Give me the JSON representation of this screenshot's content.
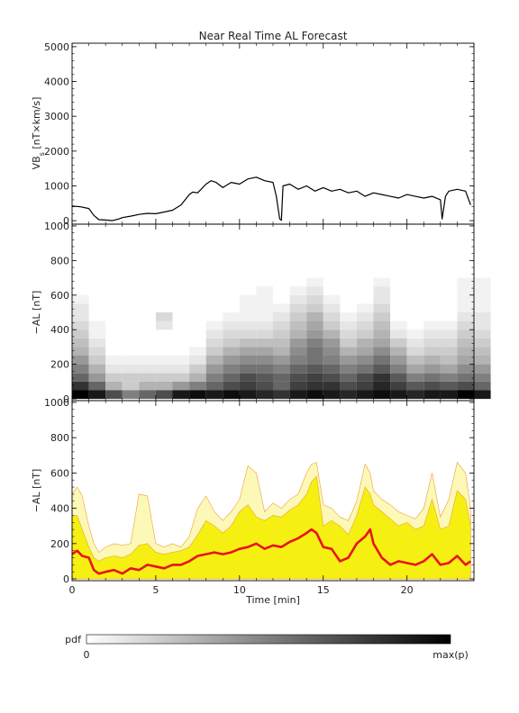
{
  "title": "Near Real Time AL Forecast",
  "colorbar": {
    "label": "pdf",
    "min_label": "0",
    "max_label": "max(p)"
  },
  "chart_data": [
    {
      "type": "line",
      "panel": "top",
      "ylabel_main": "VB",
      "ylabel_sub": "s",
      "ylabel_units": "[nT×km/s]",
      "ylim": [
        -100,
        5100
      ],
      "yticks": [
        0,
        1000,
        2000,
        3000,
        4000,
        5000
      ],
      "xlim": [
        0,
        24
      ],
      "x": [
        0,
        0.5,
        1,
        1.3,
        1.6,
        2,
        2.4,
        2.8,
        3,
        3.5,
        4,
        4.5,
        5,
        5.5,
        6,
        6.5,
        7,
        7.2,
        7.5,
        8,
        8.3,
        8.6,
        9,
        9.5,
        10,
        10.5,
        11,
        11.5,
        12,
        12.2,
        12.4,
        12.5,
        12.6,
        13,
        13.5,
        14,
        14.5,
        15,
        15.5,
        16,
        16.5,
        17,
        17.5,
        18,
        18.5,
        19,
        19.5,
        20,
        20.5,
        21,
        21.5,
        22,
        22.1,
        22.3,
        22.5,
        23,
        23.5,
        23.8
      ],
      "values": [
        420,
        400,
        350,
        150,
        30,
        20,
        0,
        50,
        90,
        130,
        180,
        210,
        200,
        250,
        300,
        450,
        750,
        820,
        800,
        1050,
        1150,
        1100,
        950,
        1100,
        1050,
        1200,
        1250,
        1150,
        1100,
        700,
        50,
        10,
        1000,
        1050,
        900,
        1000,
        850,
        950,
        850,
        900,
        800,
        850,
        700,
        800,
        750,
        700,
        650,
        750,
        700,
        650,
        700,
        600,
        50,
        700,
        850,
        900,
        850,
        450
      ]
    },
    {
      "type": "heatmap",
      "panel": "middle",
      "ylabel": "−AL [nT]",
      "ylim": [
        -10,
        1010
      ],
      "yticks": [
        0,
        200,
        400,
        600,
        800,
        1000
      ],
      "xlim": [
        0,
        24
      ],
      "x": [
        0,
        1,
        2,
        3,
        4,
        5,
        6,
        7,
        8,
        9,
        10,
        11,
        12,
        13,
        14,
        15,
        16,
        17,
        18,
        19,
        20,
        21,
        22,
        23,
        24
      ],
      "y_bins": [
        0,
        50,
        100,
        150,
        200,
        250,
        300,
        350,
        400,
        450,
        500,
        550,
        600,
        650
      ],
      "intensity": [
        [
          1.0,
          0.9,
          0.7,
          0.5,
          0.6,
          0.7,
          0.9,
          0.95,
          0.9,
          0.95,
          0.9,
          0.85,
          0.8,
          0.9,
          0.95,
          0.9,
          0.85,
          0.9,
          0.95,
          0.9,
          0.85,
          0.9,
          0.9,
          1.0,
          0.9
        ],
        [
          0.8,
          0.6,
          0.3,
          0.2,
          0.3,
          0.3,
          0.4,
          0.5,
          0.6,
          0.7,
          0.75,
          0.7,
          0.6,
          0.75,
          0.8,
          0.8,
          0.7,
          0.75,
          0.85,
          0.75,
          0.65,
          0.7,
          0.65,
          0.7,
          0.6
        ],
        [
          0.6,
          0.4,
          0.2,
          0.2,
          0.2,
          0.2,
          0.2,
          0.3,
          0.5,
          0.6,
          0.7,
          0.65,
          0.6,
          0.7,
          0.75,
          0.7,
          0.6,
          0.7,
          0.8,
          0.65,
          0.5,
          0.55,
          0.5,
          0.55,
          0.5
        ],
        [
          0.5,
          0.3,
          0.1,
          0.1,
          0.1,
          0.1,
          0.1,
          0.2,
          0.4,
          0.5,
          0.55,
          0.55,
          0.5,
          0.6,
          0.65,
          0.6,
          0.5,
          0.55,
          0.65,
          0.5,
          0.35,
          0.4,
          0.35,
          0.45,
          0.4
        ],
        [
          0.4,
          0.2,
          0.05,
          0.05,
          0.05,
          0.05,
          0.05,
          0.1,
          0.3,
          0.4,
          0.45,
          0.45,
          0.4,
          0.5,
          0.55,
          0.5,
          0.4,
          0.45,
          0.55,
          0.4,
          0.25,
          0.3,
          0.25,
          0.35,
          0.3
        ],
        [
          0.3,
          0.15,
          0.0,
          0.0,
          0.0,
          0.0,
          0.0,
          0.05,
          0.2,
          0.3,
          0.35,
          0.35,
          0.3,
          0.45,
          0.55,
          0.45,
          0.3,
          0.35,
          0.45,
          0.3,
          0.15,
          0.2,
          0.2,
          0.3,
          0.25
        ],
        [
          0.25,
          0.1,
          0.0,
          0.0,
          0.0,
          0.0,
          0.0,
          0.0,
          0.15,
          0.2,
          0.25,
          0.25,
          0.25,
          0.4,
          0.5,
          0.4,
          0.2,
          0.3,
          0.35,
          0.2,
          0.1,
          0.15,
          0.15,
          0.25,
          0.2
        ],
        [
          0.2,
          0.05,
          0.0,
          0.0,
          0.0,
          0.0,
          0.0,
          0.0,
          0.1,
          0.15,
          0.15,
          0.15,
          0.2,
          0.3,
          0.4,
          0.3,
          0.15,
          0.2,
          0.3,
          0.1,
          0.05,
          0.1,
          0.1,
          0.2,
          0.15
        ],
        [
          0.15,
          0.05,
          0.0,
          0.0,
          0.0,
          0.1,
          0.0,
          0.0,
          0.05,
          0.1,
          0.1,
          0.1,
          0.15,
          0.25,
          0.35,
          0.2,
          0.1,
          0.15,
          0.25,
          0.05,
          0.0,
          0.05,
          0.05,
          0.15,
          0.1
        ],
        [
          0.1,
          0.0,
          0.0,
          0.0,
          0.0,
          0.15,
          0.0,
          0.0,
          0.0,
          0.05,
          0.05,
          0.05,
          0.1,
          0.2,
          0.3,
          0.15,
          0.05,
          0.1,
          0.2,
          0.0,
          0.0,
          0.0,
          0.0,
          0.1,
          0.1
        ],
        [
          0.1,
          0.0,
          0.0,
          0.0,
          0.0,
          0.0,
          0.0,
          0.0,
          0.0,
          0.0,
          0.05,
          0.05,
          0.05,
          0.15,
          0.2,
          0.1,
          0.0,
          0.05,
          0.15,
          0.0,
          0.0,
          0.0,
          0.0,
          0.05,
          0.05
        ],
        [
          0.05,
          0.0,
          0.0,
          0.0,
          0.0,
          0.0,
          0.0,
          0.0,
          0.0,
          0.0,
          0.05,
          0.05,
          0.0,
          0.1,
          0.15,
          0.05,
          0.0,
          0.0,
          0.1,
          0.0,
          0.0,
          0.0,
          0.0,
          0.05,
          0.05
        ],
        [
          0.0,
          0.0,
          0.0,
          0.0,
          0.0,
          0.0,
          0.0,
          0.0,
          0.0,
          0.0,
          0.0,
          0.05,
          0.0,
          0.05,
          0.1,
          0.0,
          0.0,
          0.0,
          0.1,
          0.0,
          0.0,
          0.0,
          0.0,
          0.05,
          0.05
        ],
        [
          0.0,
          0.0,
          0.0,
          0.0,
          0.0,
          0.0,
          0.0,
          0.0,
          0.0,
          0.0,
          0.0,
          0.0,
          0.0,
          0.0,
          0.05,
          0.0,
          0.0,
          0.0,
          0.05,
          0.0,
          0.0,
          0.0,
          0.0,
          0.05,
          0.05
        ]
      ]
    },
    {
      "type": "area",
      "panel": "bottom",
      "ylabel": "−AL [nT]",
      "xlabel": "Time [min]",
      "ylim": [
        -10,
        1010
      ],
      "yticks": [
        0,
        200,
        400,
        600,
        800,
        1000
      ],
      "xticks": [
        0,
        5,
        10,
        15,
        20
      ],
      "xlim": [
        0,
        24
      ],
      "x": [
        0,
        0.3,
        0.6,
        1,
        1.3,
        1.6,
        2,
        2.5,
        3,
        3.5,
        4,
        4.5,
        5,
        5.5,
        6,
        6.5,
        7,
        7.5,
        8,
        8.5,
        9,
        9.5,
        10,
        10.5,
        11,
        11.5,
        12,
        12.5,
        13,
        13.5,
        14,
        14.3,
        14.6,
        15,
        15.5,
        16,
        16.5,
        17,
        17.5,
        17.8,
        18,
        18.5,
        19,
        19.5,
        20,
        20.5,
        21,
        21.5,
        22,
        22.5,
        23,
        23.5,
        23.8
      ],
      "series": [
        {
          "name": "",
          "role": "outer_envelope",
          "color": "#fcf8b8",
          "values": [
            480,
            520,
            470,
            300,
            200,
            150,
            180,
            200,
            190,
            200,
            480,
            470,
            200,
            180,
            200,
            180,
            240,
            400,
            470,
            380,
            330,
            380,
            450,
            640,
            600,
            380,
            430,
            400,
            450,
            480,
            600,
            650,
            660,
            420,
            400,
            350,
            330,
            440,
            650,
            600,
            500,
            450,
            420,
            380,
            360,
            340,
            400,
            600,
            350,
            450,
            660,
            600,
            400
          ]
        },
        {
          "name": "",
          "role": "inner_band",
          "color": "#f5f012",
          "values": [
            350,
            360,
            280,
            180,
            120,
            100,
            120,
            130,
            120,
            140,
            190,
            200,
            150,
            140,
            150,
            160,
            180,
            250,
            330,
            300,
            260,
            300,
            380,
            420,
            350,
            330,
            360,
            350,
            390,
            420,
            480,
            550,
            580,
            300,
            330,
            300,
            250,
            360,
            520,
            480,
            420,
            380,
            340,
            300,
            320,
            280,
            300,
            450,
            280,
            300,
            500,
            450,
            300
          ]
        },
        {
          "name": "",
          "role": "median",
          "color": "#e8141a",
          "values": [
            140,
            160,
            130,
            120,
            50,
            30,
            40,
            50,
            30,
            60,
            50,
            80,
            70,
            60,
            80,
            80,
            100,
            130,
            140,
            150,
            140,
            150,
            170,
            180,
            200,
            170,
            190,
            180,
            210,
            230,
            260,
            280,
            260,
            180,
            170,
            100,
            120,
            200,
            240,
            280,
            200,
            120,
            80,
            100,
            90,
            80,
            100,
            140,
            80,
            90,
            130,
            80,
            100
          ]
        }
      ]
    }
  ]
}
